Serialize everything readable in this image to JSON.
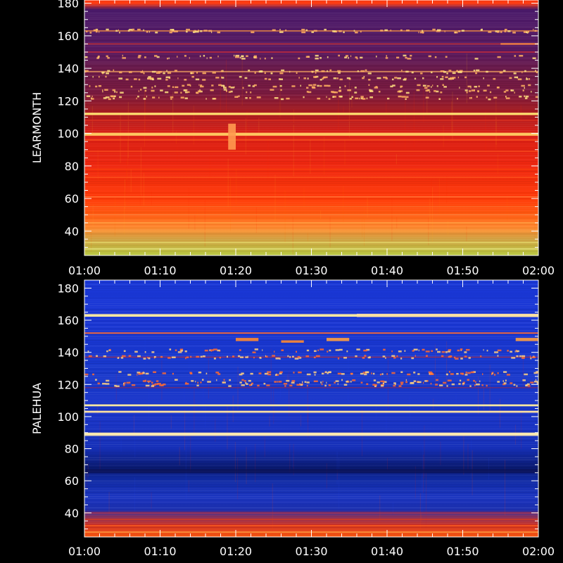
{
  "chart_data": [
    {
      "type": "heatmap",
      "ylabel": "LEARMONTH",
      "xlim": [
        "01:00",
        "02:00"
      ],
      "ylim": [
        25,
        180
      ],
      "x_ticks": [
        "01:00",
        "01:10",
        "01:20",
        "01:30",
        "01:40",
        "01:50",
        "02:00"
      ],
      "y_ticks": [
        40,
        60,
        80,
        100,
        120,
        140,
        160,
        180
      ],
      "colormap": [
        "#3a1a6a",
        "#7a1a40",
        "#c01818",
        "#ff2a00",
        "#ff6a00",
        "#ffaa20",
        "#ffe060",
        "#c8d040"
      ],
      "background_gradient": [
        {
          "y": 180,
          "color": "#ff3a10"
        },
        {
          "y": 176,
          "color": "#4a1a6a"
        },
        {
          "y": 150,
          "color": "#5a1a60"
        },
        {
          "y": 140,
          "color": "#6a1a4a"
        },
        {
          "y": 125,
          "color": "#7a1a40"
        },
        {
          "y": 115,
          "color": "#a01c24"
        },
        {
          "y": 100,
          "color": "#d81e14"
        },
        {
          "y": 80,
          "color": "#f02810"
        },
        {
          "y": 60,
          "color": "#ff3a08"
        },
        {
          "y": 50,
          "color": "#ff5a10"
        },
        {
          "y": 42,
          "color": "#ff8a30"
        },
        {
          "y": 35,
          "color": "#d0a040"
        },
        {
          "y": 25,
          "color": "#b8c840"
        }
      ],
      "bands": [
        {
          "freq": 163,
          "width": 0.8,
          "color": "#ff9a40",
          "opacity": 0.7
        },
        {
          "freq": 155,
          "width": 0.6,
          "color": "#c83030",
          "opacity": 0.9
        },
        {
          "freq": 150,
          "width": 0.6,
          "color": "#e03030",
          "opacity": 0.8
        },
        {
          "freq": 138,
          "width": 0.8,
          "color": "#ffb060",
          "opacity": 0.7
        },
        {
          "freq": 112,
          "width": 1.4,
          "color": "#ffe070",
          "opacity": 1.0
        },
        {
          "freq": 108,
          "width": 0.8,
          "color": "#d83020",
          "opacity": 0.9
        },
        {
          "freq": 99.5,
          "width": 1.8,
          "color": "#ffc860",
          "opacity": 1.0
        },
        {
          "freq": 96,
          "width": 0.6,
          "color": "#ff6020",
          "opacity": 0.8
        },
        {
          "freq": 89,
          "width": 0.7,
          "color": "#ff5020",
          "opacity": 0.8
        },
        {
          "freq": 78,
          "width": 0.6,
          "color": "#ff4a10",
          "opacity": 0.7
        },
        {
          "freq": 73,
          "width": 0.5,
          "color": "#ff5a20",
          "opacity": 0.7
        },
        {
          "freq": 61,
          "width": 0.6,
          "color": "#ff8040",
          "opacity": 0.8
        },
        {
          "freq": 55,
          "width": 0.5,
          "color": "#ff7030",
          "opacity": 0.8
        },
        {
          "freq": 50,
          "width": 0.5,
          "color": "#ff9050",
          "opacity": 0.7
        },
        {
          "freq": 45,
          "width": 0.6,
          "color": "#ffb050",
          "opacity": 0.7
        },
        {
          "freq": 40,
          "width": 0.5,
          "color": "#ffa040",
          "opacity": 0.7
        },
        {
          "freq": 33,
          "width": 0.6,
          "color": "#e8e070",
          "opacity": 0.8
        },
        {
          "freq": 29,
          "width": 0.6,
          "color": "#f0f090",
          "opacity": 0.8
        }
      ],
      "bursts": [
        {
          "t0": "01:19",
          "t1": "01:20",
          "f0": 90,
          "f1": 106,
          "color": "#ff9a50"
        },
        {
          "t0": "01:55",
          "t1": "02:00",
          "f0": 154.5,
          "f1": 155.5,
          "color": "#ff8a40"
        }
      ],
      "noise_rows": [
        163,
        147,
        138,
        134,
        129,
        126,
        122
      ],
      "noise_seed": 7
    },
    {
      "type": "heatmap",
      "ylabel": "PALEHUA",
      "xlim": [
        "01:00",
        "02:00"
      ],
      "ylim": [
        25,
        185
      ],
      "x_ticks": [
        "01:00",
        "01:10",
        "01:20",
        "01:30",
        "01:40",
        "01:50",
        "02:00"
      ],
      "y_ticks": [
        40,
        60,
        80,
        100,
        120,
        140,
        160,
        180
      ],
      "colormap": [
        "#000040",
        "#0010a0",
        "#1030d0",
        "#2040e8",
        "#c02030",
        "#ff4010",
        "#ff9a30",
        "#ffe0a0"
      ],
      "background_gradient": [
        {
          "y": 185,
          "color": "#1a38d8"
        },
        {
          "y": 160,
          "color": "#1a36d4"
        },
        {
          "y": 130,
          "color": "#1838cc"
        },
        {
          "y": 100,
          "color": "#1a34c8"
        },
        {
          "y": 80,
          "color": "#1630b8"
        },
        {
          "y": 68,
          "color": "#0a1a70"
        },
        {
          "y": 62,
          "color": "#102aa0"
        },
        {
          "y": 50,
          "color": "#1a34c0"
        },
        {
          "y": 42,
          "color": "#1c30b0"
        },
        {
          "y": 38,
          "color": "#803060"
        },
        {
          "y": 32,
          "color": "#d03020"
        },
        {
          "y": 25,
          "color": "#ff5a10"
        }
      ],
      "bands": [
        {
          "freq": 163,
          "width": 1.6,
          "color": "#ffe8a0",
          "opacity": 1.0
        },
        {
          "freq": 152,
          "width": 0.8,
          "color": "#ff6a30",
          "opacity": 1.0
        },
        {
          "freq": 137,
          "width": 0.5,
          "color": "#c03040",
          "opacity": 0.7
        },
        {
          "freq": 118,
          "width": 0.6,
          "color": "#a02848",
          "opacity": 0.6
        },
        {
          "freq": 107,
          "width": 1.2,
          "color": "#ffe8a0",
          "opacity": 1.0
        },
        {
          "freq": 103,
          "width": 1.2,
          "color": "#ffe0a0",
          "opacity": 1.0
        },
        {
          "freq": 89,
          "width": 2.0,
          "color": "#ffe8b0",
          "opacity": 1.0
        },
        {
          "freq": 66,
          "width": 2.5,
          "color": "#0a1050",
          "opacity": 0.7
        },
        {
          "freq": 40,
          "width": 1.0,
          "color": "#c03040",
          "opacity": 0.6
        },
        {
          "freq": 36,
          "width": 0.8,
          "color": "#e04020",
          "opacity": 0.7
        },
        {
          "freq": 32,
          "width": 0.8,
          "color": "#ff6020",
          "opacity": 0.8
        },
        {
          "freq": 28,
          "width": 0.8,
          "color": "#ffa040",
          "opacity": 0.8
        }
      ],
      "bursts": [
        {
          "t0": "01:20",
          "t1": "01:23",
          "f0": 147,
          "f1": 149,
          "color": "#ff8a30"
        },
        {
          "t0": "01:26",
          "t1": "01:29",
          "f0": 146,
          "f1": 147.5,
          "color": "#ff8a30"
        },
        {
          "t0": "01:32",
          "t1": "01:35",
          "f0": 147,
          "f1": 149,
          "color": "#ffa040"
        },
        {
          "t0": "01:57",
          "t1": "02:00",
          "f0": 147,
          "f1": 149,
          "color": "#ffa040"
        },
        {
          "t0": "01:36",
          "t1": "02:00",
          "f0": 162,
          "f1": 164,
          "color": "#ffe0a0"
        }
      ],
      "noise_rows": [
        127,
        122,
        120,
        141,
        137
      ],
      "noise_seed": 13
    }
  ]
}
